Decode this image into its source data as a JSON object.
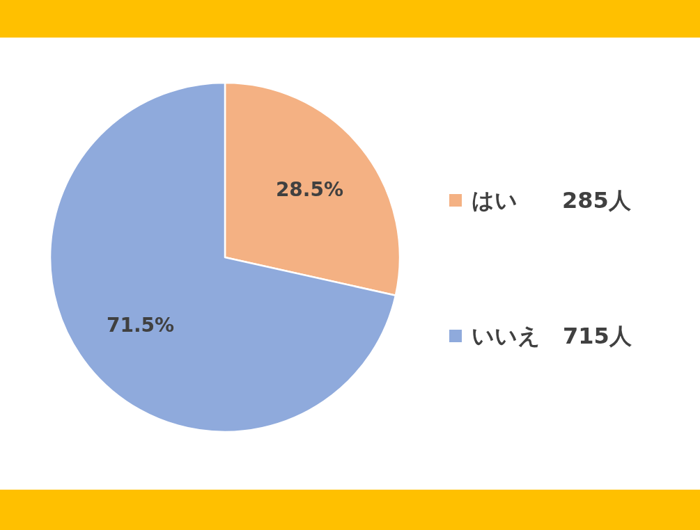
{
  "chart_data": {
    "type": "pie",
    "categories": [
      "はい　　285人",
      "いいえ　715人"
    ],
    "values": [
      28.5,
      71.5
    ],
    "value_labels": [
      "28.5%",
      "71.5%"
    ],
    "colors": [
      "#f4b183",
      "#8faadc"
    ],
    "legend": "right"
  }
}
